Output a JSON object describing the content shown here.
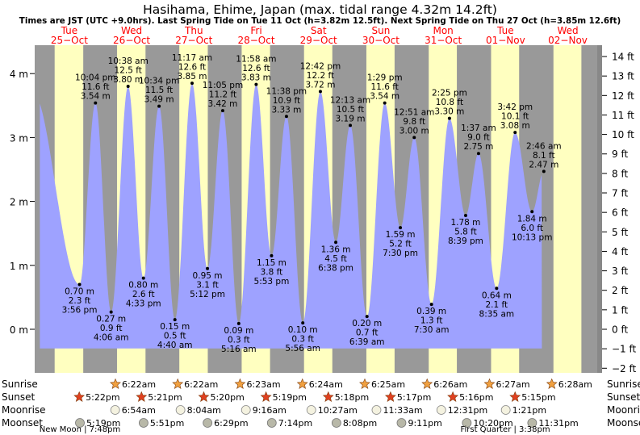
{
  "colors": {
    "day": "#ffffc0",
    "night": "#999999",
    "water": "#9ea2ff",
    "header_text": "#ff0000",
    "text": "#000000",
    "sun": "#f0a040",
    "star": "#e04020",
    "moon": "#b8b8a8"
  },
  "chart_data": {
    "type": "area",
    "title": "Hasihama, Ehime, Japan (max. tidal range 4.32m 14.2ft)",
    "subtitle": "Times are JST (UTC +9.0hrs). Last Spring Tide on Tue 11 Oct (h=3.82m 12.5ft). Next Spring Tide on Thu 27 Oct (h=3.85m 12.6ft)",
    "ylim_m": [
      -0.5,
      4.35
    ],
    "left_axis": {
      "unit": "m",
      "ticks": [
        0,
        1,
        2,
        3,
        4
      ],
      "labels": [
        "0 m",
        "1 m",
        "2 m",
        "3 m",
        "4 m"
      ]
    },
    "right_axis": {
      "unit": "ft",
      "ticks": [
        -2,
        -1,
        0,
        1,
        2,
        3,
        4,
        5,
        6,
        7,
        8,
        9,
        10,
        11,
        12,
        13,
        14
      ],
      "labels": [
        "−2 ft",
        "−1 ft",
        "0 ft",
        "1 ft",
        "2 ft",
        "3 ft",
        "4 ft",
        "5 ft",
        "6 ft",
        "7 ft",
        "8 ft",
        "9 ft",
        "10 ft",
        "11 ft",
        "12 ft",
        "13 ft",
        "14 ft"
      ]
    },
    "days": [
      {
        "dow": "Tue",
        "date": "25−Oct"
      },
      {
        "dow": "Wed",
        "date": "26−Oct"
      },
      {
        "dow": "Thu",
        "date": "27−Oct"
      },
      {
        "dow": "Fri",
        "date": "28−Oct"
      },
      {
        "dow": "Sat",
        "date": "29−Oct"
      },
      {
        "dow": "Sun",
        "date": "30−Oct"
      },
      {
        "dow": "Mon",
        "date": "31−Oct"
      },
      {
        "dow": "Tue",
        "date": "01−Nov"
      },
      {
        "dow": "Wed",
        "date": "02−Nov"
      }
    ],
    "range_start": "2022-10-24 22:40",
    "range_end": "2022-11-02 23:20",
    "curve_start": "2022-10-25 00:40",
    "curve_end": "2022-11-02 02:00",
    "nights": [
      {
        "start": "2022-10-24 22:40",
        "end": "2022-10-25 06:21"
      },
      {
        "start": "2022-10-25 17:22",
        "end": "2022-10-26 06:22"
      },
      {
        "start": "2022-10-26 17:21",
        "end": "2022-10-27 06:22"
      },
      {
        "start": "2022-10-27 17:20",
        "end": "2022-10-28 06:23"
      },
      {
        "start": "2022-10-28 17:19",
        "end": "2022-10-29 06:24"
      },
      {
        "start": "2022-10-29 17:18",
        "end": "2022-10-30 06:25"
      },
      {
        "start": "2022-10-30 17:17",
        "end": "2022-10-31 06:26"
      },
      {
        "start": "2022-10-31 17:16",
        "end": "2022-11-01 06:27"
      },
      {
        "start": "2022-11-01 17:15",
        "end": "2022-11-02 06:28"
      },
      {
        "start": "2022-11-02 17:14",
        "end": "2022-11-02 23:20"
      }
    ],
    "tides": [
      {
        "t": "2022-10-24 21:30",
        "m": 3.75,
        "hidden": true
      },
      {
        "t": "2022-10-25 15:56",
        "m": 0.7,
        "type": "low",
        "lines": [
          "0.70 m",
          "2.3 ft",
          "3:56 pm"
        ]
      },
      {
        "t": "2022-10-25 22:04",
        "m": 3.54,
        "type": "high",
        "lines": [
          "10:04 pm",
          "11.6 ft",
          "3.54 m"
        ]
      },
      {
        "t": "2022-10-26 04:06",
        "m": 0.27,
        "type": "low",
        "lines": [
          "0.27 m",
          "0.9 ft",
          "4:06 am"
        ]
      },
      {
        "t": "2022-10-26 10:38",
        "m": 3.8,
        "type": "high",
        "lines": [
          "10:38 am",
          "12.5 ft",
          "3.80 m"
        ]
      },
      {
        "t": "2022-10-26 16:33",
        "m": 0.8,
        "type": "low",
        "lines": [
          "0.80 m",
          "2.6 ft",
          "4:33 pm"
        ]
      },
      {
        "t": "2022-10-26 22:34",
        "m": 3.49,
        "type": "high",
        "lines": [
          "10:34 pm",
          "11.5 ft",
          "3.49 m"
        ]
      },
      {
        "t": "2022-10-27 04:40",
        "m": 0.15,
        "type": "low",
        "lines": [
          "0.15 m",
          "0.5 ft",
          "4:40 am"
        ]
      },
      {
        "t": "2022-10-27 11:17",
        "m": 3.85,
        "type": "high",
        "lines": [
          "11:17 am",
          "12.6 ft",
          "3.85 m"
        ]
      },
      {
        "t": "2022-10-27 17:12",
        "m": 0.95,
        "type": "low",
        "lines": [
          "0.95 m",
          "3.1 ft",
          "5:12 pm"
        ]
      },
      {
        "t": "2022-10-27 23:05",
        "m": 3.42,
        "type": "high",
        "lines": [
          "11:05 pm",
          "11.2 ft",
          "3.42 m"
        ]
      },
      {
        "t": "2022-10-28 05:16",
        "m": 0.09,
        "type": "low",
        "lines": [
          "0.09 m",
          "0.3 ft",
          "5:16 am"
        ]
      },
      {
        "t": "2022-10-28 11:58",
        "m": 3.83,
        "type": "high",
        "lines": [
          "11:58 am",
          "12.6 ft",
          "3.83 m"
        ]
      },
      {
        "t": "2022-10-28 17:53",
        "m": 1.15,
        "type": "low",
        "lines": [
          "1.15 m",
          "3.8 ft",
          "5:53 pm"
        ]
      },
      {
        "t": "2022-10-28 23:38",
        "m": 3.33,
        "type": "high",
        "lines": [
          "11:38 pm",
          "10.9 ft",
          "3.33 m"
        ]
      },
      {
        "t": "2022-10-29 05:56",
        "m": 0.1,
        "type": "low",
        "lines": [
          "0.10 m",
          "0.3 ft",
          "5:56 am"
        ]
      },
      {
        "t": "2022-10-29 12:42",
        "m": 3.72,
        "type": "high",
        "lines": [
          "12:42 pm",
          "12.2 ft",
          "3.72 m"
        ]
      },
      {
        "t": "2022-10-29 18:38",
        "m": 1.36,
        "type": "low",
        "lines": [
          "1.36 m",
          "4.5 ft",
          "6:38 pm"
        ]
      },
      {
        "t": "2022-10-30 00:13",
        "m": 3.19,
        "type": "high",
        "lines": [
          "12:13 am",
          "10.5 ft",
          "3.19 m"
        ]
      },
      {
        "t": "2022-10-30 06:39",
        "m": 0.2,
        "type": "low",
        "lines": [
          "0.20 m",
          "0.7 ft",
          "6:39 am"
        ]
      },
      {
        "t": "2022-10-30 13:29",
        "m": 3.54,
        "type": "high",
        "lines": [
          "1:29 pm",
          "11.6 ft",
          "3.54 m"
        ]
      },
      {
        "t": "2022-10-30 19:30",
        "m": 1.59,
        "type": "low",
        "lines": [
          "1.59 m",
          "5.2 ft",
          "7:30 pm"
        ]
      },
      {
        "t": "2022-10-31 00:51",
        "m": 3.0,
        "type": "high",
        "lines": [
          "12:51 am",
          "9.8 ft",
          "3.00 m"
        ]
      },
      {
        "t": "2022-10-31 07:30",
        "m": 0.39,
        "type": "low",
        "lines": [
          "0.39 m",
          "1.3 ft",
          "7:30 am"
        ]
      },
      {
        "t": "2022-10-31 14:25",
        "m": 3.3,
        "type": "high",
        "lines": [
          "2:25 pm",
          "10.8 ft",
          "3.30 m"
        ]
      },
      {
        "t": "2022-10-31 20:39",
        "m": 1.78,
        "type": "low",
        "lines": [
          "1.78 m",
          "5.8 ft",
          "8:39 pm"
        ]
      },
      {
        "t": "2022-11-01 01:37",
        "m": 2.75,
        "type": "high",
        "lines": [
          "1:37 am",
          "9.0 ft",
          "2.75 m"
        ]
      },
      {
        "t": "2022-11-01 08:35",
        "m": 0.64,
        "type": "low",
        "lines": [
          "0.64 m",
          "2.1 ft",
          "8:35 am"
        ]
      },
      {
        "t": "2022-11-01 15:42",
        "m": 3.08,
        "type": "high",
        "lines": [
          "3:42 pm",
          "10.1 ft",
          "3.08 m"
        ]
      },
      {
        "t": "2022-11-01 22:13",
        "m": 1.84,
        "type": "low",
        "lines": [
          "1.84 m",
          "6.0 ft",
          "10:13 pm"
        ]
      },
      {
        "t": "2022-11-02 02:46",
        "m": 2.47,
        "type": "high",
        "lines": [
          "2:46 am",
          "8.1 ft",
          "2.47 m"
        ]
      },
      {
        "t": "2022-11-02 09:30",
        "m": 0.9,
        "hidden": true
      }
    ],
    "astro": {
      "row_labels": [
        "Sunrise",
        "Sunset",
        "Moonrise",
        "Moonset"
      ],
      "sunrise": [
        {
          "t": "2022-10-26 06:22",
          "label": "6:22am"
        },
        {
          "t": "2022-10-27 06:22",
          "label": "6:22am"
        },
        {
          "t": "2022-10-28 06:23",
          "label": "6:23am"
        },
        {
          "t": "2022-10-29 06:24",
          "label": "6:24am"
        },
        {
          "t": "2022-10-30 06:25",
          "label": "6:25am"
        },
        {
          "t": "2022-10-31 06:26",
          "label": "6:26am"
        },
        {
          "t": "2022-11-01 06:27",
          "label": "6:27am"
        },
        {
          "t": "2022-11-02 06:28",
          "label": "6:28am"
        }
      ],
      "sunset": [
        {
          "t": "2022-10-25 17:22",
          "label": "5:22pm"
        },
        {
          "t": "2022-10-26 17:21",
          "label": "5:21pm"
        },
        {
          "t": "2022-10-27 17:20",
          "label": "5:20pm"
        },
        {
          "t": "2022-10-28 17:19",
          "label": "5:19pm"
        },
        {
          "t": "2022-10-29 17:18",
          "label": "5:18pm"
        },
        {
          "t": "2022-10-30 17:17",
          "label": "5:17pm"
        },
        {
          "t": "2022-10-31 17:16",
          "label": "5:16pm"
        },
        {
          "t": "2022-11-01 17:15",
          "label": "5:15pm"
        }
      ],
      "moonrise": [
        {
          "t": "2022-10-26 06:54",
          "label": "6:54am"
        },
        {
          "t": "2022-10-27 08:04",
          "label": "8:04am"
        },
        {
          "t": "2022-10-28 09:16",
          "label": "9:16am"
        },
        {
          "t": "2022-10-29 10:27",
          "label": "10:27am"
        },
        {
          "t": "2022-10-30 11:33",
          "label": "11:33am"
        },
        {
          "t": "2022-10-31 12:31",
          "label": "12:31pm"
        },
        {
          "t": "2022-11-01 13:21",
          "label": "1:21pm"
        }
      ],
      "moonset": [
        {
          "t": "2022-10-25 17:19",
          "label": "5:19pm"
        },
        {
          "t": "2022-10-26 17:51",
          "label": "5:51pm"
        },
        {
          "t": "2022-10-27 18:29",
          "label": "6:29pm"
        },
        {
          "t": "2022-10-28 19:14",
          "label": "7:14pm"
        },
        {
          "t": "2022-10-29 20:08",
          "label": "8:08pm"
        },
        {
          "t": "2022-10-30 21:11",
          "label": "9:11pm"
        },
        {
          "t": "2022-10-31 22:20",
          "label": "10:20pm"
        },
        {
          "t": "2022-11-01 23:31",
          "label": "11:31pm"
        }
      ],
      "moon_phases": [
        {
          "t": "2022-10-25 19:48",
          "label": "New Moon | 7:48pm"
        },
        {
          "t": "2022-11-01 15:38",
          "label": "First Quarter | 3:38pm"
        }
      ]
    }
  }
}
